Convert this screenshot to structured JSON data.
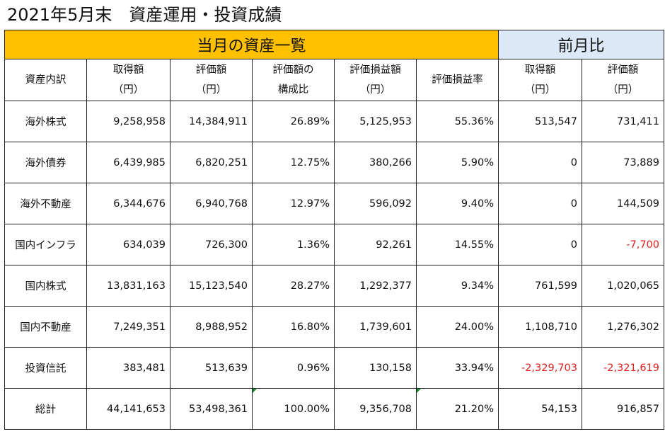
{
  "title": "2021年5月末　資産運用・投資成績",
  "band": {
    "current": "当月の資産一覧",
    "previous": "前月比"
  },
  "headers": [
    [
      "資産内訳"
    ],
    [
      "取得額",
      "（円）"
    ],
    [
      "評価額",
      "（円）"
    ],
    [
      "評価額の",
      "構成比"
    ],
    [
      "評価損益額",
      "（円）"
    ],
    [
      "評価損益率"
    ],
    [
      "取得額",
      "（円）"
    ],
    [
      "評価額",
      "（円）"
    ]
  ],
  "rows": [
    {
      "name": "海外株式",
      "cells": [
        "9,258,958",
        "14,384,911",
        "26.89%",
        "5,125,953",
        "55.36%",
        "513,547",
        "731,411"
      ]
    },
    {
      "name": "海外債券",
      "cells": [
        "6,439,985",
        "6,820,251",
        "12.75%",
        "380,266",
        "5.90%",
        "0",
        "73,889"
      ]
    },
    {
      "name": "海外不動産",
      "cells": [
        "6,344,676",
        "6,940,768",
        "12.97%",
        "596,092",
        "9.40%",
        "0",
        "144,509"
      ]
    },
    {
      "name": "国内インフラ",
      "cells": [
        "634,039",
        "726,300",
        "1.36%",
        "92,261",
        "14.55%",
        "0",
        "-7,700"
      ]
    },
    {
      "name": "国内株式",
      "cells": [
        "13,831,163",
        "15,123,540",
        "28.27%",
        "1,292,377",
        "9.34%",
        "761,599",
        "1,020,065"
      ]
    },
    {
      "name": "国内不動産",
      "cells": [
        "7,249,351",
        "8,988,952",
        "16.80%",
        "1,739,601",
        "24.00%",
        "1,108,710",
        "1,276,302"
      ]
    },
    {
      "name": "投資信託",
      "cells": [
        "383,481",
        "513,639",
        "0.96%",
        "130,158",
        "33.94%",
        "-2,329,703",
        "-2,321,619"
      ]
    },
    {
      "name": "総計",
      "cells": [
        "44,141,653",
        "53,498,361",
        "100.00%",
        "9,356,708",
        "21.20%",
        "54,153",
        "916,857"
      ]
    }
  ],
  "colors": {
    "current_band": "#ffc000",
    "previous_band": "#dde9f6",
    "negative": "#e0201b",
    "error_flag": "#1a8a2e"
  }
}
